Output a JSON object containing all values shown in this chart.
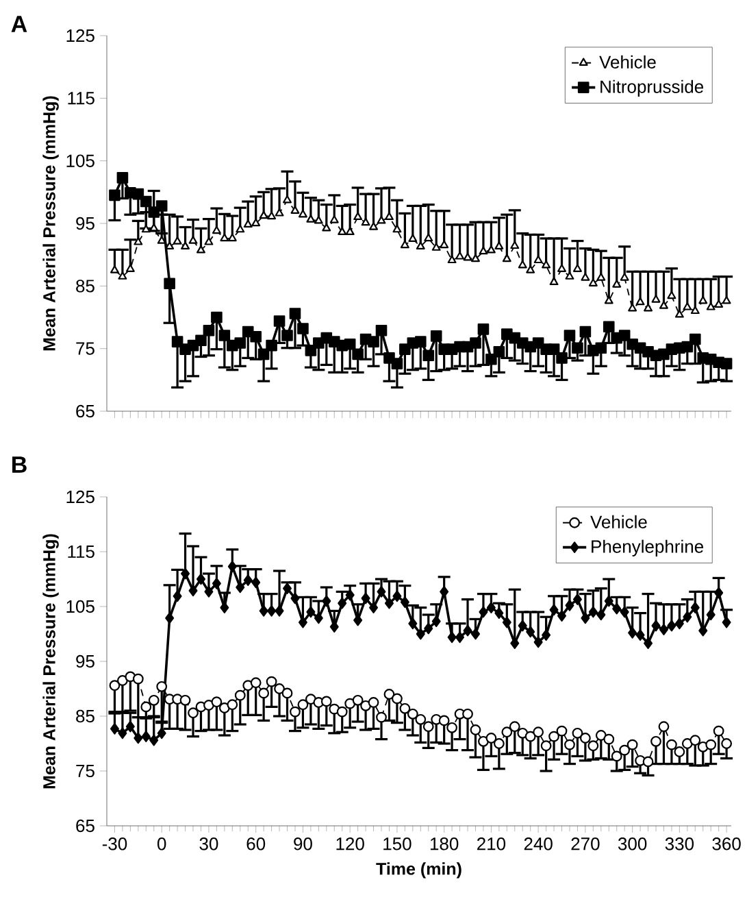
{
  "chart_data": [
    {
      "type": "line",
      "annotations": [
        "A"
      ],
      "ylabel": "Mean Arterial Pressure (mmHg)",
      "xlim": [
        -35,
        363
      ],
      "ylim": [
        65,
        125
      ],
      "xticks": [
        -30,
        -25,
        -20,
        -15,
        -10,
        -5,
        0,
        5,
        10,
        15,
        20,
        25,
        30,
        35,
        40,
        45,
        50,
        55,
        60,
        65,
        70,
        75,
        80,
        85,
        90,
        95,
        100,
        105,
        110,
        115,
        120,
        125,
        130,
        135,
        140,
        145,
        150,
        155,
        160,
        165,
        170,
        175,
        180,
        185,
        190,
        195,
        200,
        205,
        210,
        215,
        220,
        225,
        230,
        235,
        240,
        245,
        250,
        255,
        260,
        265,
        270,
        275,
        280,
        285,
        290,
        295,
        300,
        305,
        310,
        315,
        320,
        325,
        330,
        335,
        340,
        345,
        350,
        355,
        360
      ],
      "yticks": [
        65,
        75,
        85,
        95,
        105,
        115,
        125
      ],
      "tick_labels": "y",
      "legend": "top right",
      "x": [
        -30,
        -25,
        -20,
        -15,
        -10,
        -5,
        0,
        5,
        10,
        15,
        20,
        25,
        30,
        35,
        40,
        45,
        50,
        55,
        60,
        65,
        70,
        75,
        80,
        85,
        90,
        95,
        100,
        105,
        110,
        115,
        120,
        125,
        130,
        135,
        140,
        145,
        150,
        155,
        160,
        165,
        170,
        175,
        180,
        185,
        190,
        195,
        200,
        205,
        210,
        215,
        220,
        225,
        230,
        235,
        240,
        245,
        250,
        255,
        260,
        265,
        270,
        275,
        280,
        285,
        290,
        295,
        300,
        305,
        310,
        315,
        320,
        325,
        330,
        335,
        340,
        345,
        350,
        355,
        360
      ],
      "series": [
        {
          "name": "Vehicle",
          "color": "#000000",
          "marker": "triangle",
          "line_style": "dashed",
          "values": [
            87.5,
            86.5,
            87.7,
            92.0,
            94.0,
            94.2,
            92.2,
            91.3,
            92.1,
            91.3,
            92.2,
            90.7,
            92.0,
            93.8,
            92.6,
            92.6,
            94.0,
            94.8,
            95.0,
            96.2,
            96.1,
            96.6,
            98.7,
            97.0,
            96.4,
            95.6,
            95.4,
            94.2,
            95.5,
            93.6,
            93.6,
            96.0,
            95.1,
            94.4,
            95.4,
            96.0,
            94.0,
            91.5,
            92.5,
            91.3,
            92.6,
            91.1,
            91.5,
            89.1,
            89.7,
            89.5,
            89.3,
            90.5,
            90.7,
            91.3,
            89.3,
            91.4,
            88.3,
            87.5,
            89.1,
            88.3,
            85.6,
            87.7,
            86.5,
            87.7,
            86.3,
            85.4,
            86.3,
            82.6,
            85.2,
            86.3,
            81.4,
            82.4,
            81.4,
            82.8,
            81.8,
            83.4,
            80.4,
            81.6,
            81.0,
            82.6,
            81.6,
            82.0,
            82.6
          ],
          "errors": [
            [
              87.5,
              90.8
            ],
            [
              86.5,
              90.8
            ],
            [
              87.7,
              92.4
            ],
            [
              92.0,
              95.4
            ],
            [
              94.0,
              96.8
            ],
            [
              94.2,
              100.2
            ],
            [
              92.2,
              96.4
            ],
            [
              91.3,
              96.4
            ],
            [
              92.1,
              96.1
            ],
            [
              91.3,
              94.4
            ],
            [
              92.2,
              95.6
            ],
            [
              90.7,
              94.2
            ],
            [
              92.0,
              95.7
            ],
            [
              93.8,
              97.4
            ],
            [
              92.6,
              96.5
            ],
            [
              92.6,
              96.2
            ],
            [
              94.0,
              97.5
            ],
            [
              94.8,
              98.5
            ],
            [
              95.0,
              99.3
            ],
            [
              96.2,
              100.0
            ],
            [
              96.1,
              100.5
            ],
            [
              96.6,
              100.6
            ],
            [
              98.7,
              103.3
            ],
            [
              97.0,
              101.7
            ],
            [
              96.4,
              99.9
            ],
            [
              95.6,
              99.1
            ],
            [
              95.4,
              98.7
            ],
            [
              94.2,
              98.0
            ],
            [
              95.5,
              99.5
            ],
            [
              93.6,
              97.8
            ],
            [
              93.6,
              98.0
            ],
            [
              96.0,
              100.7
            ],
            [
              95.1,
              99.7
            ],
            [
              94.4,
              99.7
            ],
            [
              95.4,
              100.6
            ],
            [
              96.0,
              100.7
            ],
            [
              94.0,
              98.7
            ],
            [
              91.5,
              96.6
            ],
            [
              92.5,
              97.8
            ],
            [
              91.3,
              97.8
            ],
            [
              92.6,
              98.0
            ],
            [
              91.1,
              97.0
            ],
            [
              91.5,
              97.0
            ],
            [
              89.1,
              94.8
            ],
            [
              89.7,
              94.8
            ],
            [
              89.5,
              94.8
            ],
            [
              89.3,
              95.2
            ],
            [
              90.5,
              95.2
            ],
            [
              90.7,
              95.2
            ],
            [
              91.3,
              95.9
            ],
            [
              89.3,
              96.4
            ],
            [
              91.4,
              97.1
            ],
            [
              88.3,
              93.4
            ],
            [
              87.5,
              93.2
            ],
            [
              89.1,
              93.2
            ],
            [
              88.3,
              92.6
            ],
            [
              85.6,
              92.6
            ],
            [
              87.7,
              92.6
            ],
            [
              86.5,
              91.0
            ],
            [
              87.7,
              92.2
            ],
            [
              86.3,
              91.0
            ],
            [
              85.4,
              90.8
            ],
            [
              86.3,
              90.6
            ],
            [
              82.6,
              89.5
            ],
            [
              85.2,
              89.5
            ],
            [
              86.3,
              91.3
            ],
            [
              81.4,
              87.3
            ],
            [
              82.4,
              87.3
            ],
            [
              81.4,
              87.3
            ],
            [
              82.8,
              87.3
            ],
            [
              81.8,
              87.3
            ],
            [
              83.4,
              87.8
            ],
            [
              80.4,
              86.1
            ],
            [
              81.6,
              86.1
            ],
            [
              81.0,
              86.1
            ],
            [
              82.6,
              86.1
            ],
            [
              81.6,
              86.1
            ],
            [
              82.0,
              86.5
            ],
            [
              82.6,
              86.5
            ]
          ]
        },
        {
          "name": "Nitroprusside",
          "color": "#000000",
          "marker": "square",
          "line_style": "solid",
          "values": [
            99.5,
            102.3,
            99.9,
            99.7,
            98.5,
            96.8,
            97.8,
            85.4,
            76.1,
            74.9,
            75.5,
            76.3,
            77.9,
            80.0,
            77.1,
            75.5,
            75.9,
            77.7,
            76.9,
            74.1,
            75.5,
            79.4,
            77.1,
            80.6,
            78.2,
            74.7,
            75.9,
            76.7,
            76.1,
            75.5,
            75.7,
            74.1,
            76.5,
            76.1,
            77.9,
            73.5,
            72.6,
            74.9,
            75.9,
            76.1,
            73.9,
            77.0,
            74.9,
            74.9,
            75.3,
            75.3,
            75.9,
            78.1,
            73.3,
            74.5,
            77.3,
            76.7,
            75.9,
            75.3,
            75.9,
            74.9,
            74.9,
            73.5,
            77.1,
            75.1,
            77.7,
            74.7,
            75.1,
            78.5,
            76.7,
            77.1,
            75.7,
            75.1,
            74.5,
            73.9,
            74.1,
            74.9,
            75.1,
            75.3,
            76.5,
            73.5,
            73.3,
            72.8,
            72.6
          ],
          "errors": [
            [
              95.5,
              99.5
            ],
            [
              99.0,
              102.3
            ],
            [
              96.4,
              99.9
            ],
            [
              96.6,
              99.7
            ],
            [
              94.2,
              98.5
            ],
            [
              93.8,
              96.8
            ],
            [
              93.4,
              97.8
            ],
            [
              79.1,
              85.4
            ],
            [
              68.8,
              76.1
            ],
            [
              69.8,
              74.9
            ],
            [
              70.6,
              75.5
            ],
            [
              73.7,
              76.3
            ],
            [
              73.9,
              77.9
            ],
            [
              74.9,
              80.0
            ],
            [
              72.0,
              77.1
            ],
            [
              71.6,
              75.5
            ],
            [
              72.2,
              75.9
            ],
            [
              73.5,
              77.7
            ],
            [
              73.3,
              76.9
            ],
            [
              69.8,
              74.1
            ],
            [
              71.8,
              75.5
            ],
            [
              75.9,
              79.4
            ],
            [
              75.1,
              77.1
            ],
            [
              75.1,
              80.6
            ],
            [
              75.5,
              78.2
            ],
            [
              72.0,
              74.7
            ],
            [
              71.6,
              75.9
            ],
            [
              72.4,
              76.7
            ],
            [
              71.2,
              76.1
            ],
            [
              71.2,
              75.5
            ],
            [
              71.8,
              75.7
            ],
            [
              71.2,
              74.1
            ],
            [
              73.3,
              76.5
            ],
            [
              72.2,
              76.1
            ],
            [
              74.1,
              77.9
            ],
            [
              69.8,
              73.5
            ],
            [
              68.8,
              72.6
            ],
            [
              71.0,
              74.9
            ],
            [
              71.6,
              75.9
            ],
            [
              71.8,
              76.1
            ],
            [
              70.0,
              73.9
            ],
            [
              71.4,
              77.0
            ],
            [
              71.6,
              74.9
            ],
            [
              71.8,
              74.9
            ],
            [
              72.2,
              75.3
            ],
            [
              71.4,
              75.3
            ],
            [
              72.2,
              75.9
            ],
            [
              72.4,
              78.1
            ],
            [
              70.6,
              73.3
            ],
            [
              71.2,
              74.5
            ],
            [
              73.5,
              77.3
            ],
            [
              73.1,
              76.7
            ],
            [
              72.6,
              75.9
            ],
            [
              71.4,
              75.3
            ],
            [
              72.2,
              75.9
            ],
            [
              71.2,
              74.9
            ],
            [
              70.6,
              74.9
            ],
            [
              70.0,
              73.5
            ],
            [
              73.5,
              77.1
            ],
            [
              73.1,
              75.1
            ],
            [
              73.9,
              77.7
            ],
            [
              71.0,
              74.7
            ],
            [
              72.2,
              75.1
            ],
            [
              75.9,
              78.5
            ],
            [
              74.3,
              76.7
            ],
            [
              73.9,
              77.1
            ],
            [
              72.2,
              75.7
            ],
            [
              71.8,
              75.1
            ],
            [
              71.8,
              74.5
            ],
            [
              70.6,
              73.9
            ],
            [
              70.6,
              74.1
            ],
            [
              72.2,
              74.9
            ],
            [
              71.6,
              75.1
            ],
            [
              72.6,
              75.3
            ],
            [
              72.6,
              76.5
            ],
            [
              69.6,
              73.5
            ],
            [
              69.8,
              73.3
            ],
            [
              70.0,
              72.8
            ],
            [
              69.8,
              72.6
            ]
          ]
        }
      ]
    },
    {
      "type": "line",
      "annotations": [
        "B"
      ],
      "xlabel": "Time (min)",
      "ylabel": "Mean Arterial Pressure (mmHg)",
      "xlim": [
        -35,
        363
      ],
      "ylim": [
        65,
        125
      ],
      "xticks": [
        -30,
        0,
        30,
        60,
        90,
        120,
        150,
        180,
        210,
        240,
        270,
        300,
        330,
        360
      ],
      "yticks": [
        65,
        75,
        85,
        95,
        105,
        115,
        125
      ],
      "legend": "top right",
      "x": [
        -30,
        -25,
        -20,
        -15,
        -10,
        -5,
        0,
        5,
        10,
        15,
        20,
        25,
        30,
        35,
        40,
        45,
        50,
        55,
        60,
        65,
        70,
        75,
        80,
        85,
        90,
        95,
        100,
        105,
        110,
        115,
        120,
        125,
        130,
        135,
        140,
        145,
        150,
        155,
        160,
        165,
        170,
        175,
        180,
        185,
        190,
        195,
        200,
        205,
        210,
        215,
        220,
        225,
        230,
        235,
        240,
        245,
        250,
        255,
        260,
        265,
        270,
        275,
        280,
        285,
        290,
        295,
        300,
        305,
        310,
        315,
        320,
        325,
        330,
        335,
        340,
        345,
        350,
        355,
        360
      ],
      "series": [
        {
          "name": "Vehicle",
          "color": "#000000",
          "marker": "circle",
          "line_style": "dashed",
          "values": [
            90.6,
            91.5,
            92.2,
            91.8,
            86.7,
            87.9,
            90.4,
            88.1,
            88.1,
            87.9,
            85.6,
            86.7,
            87.0,
            87.6,
            86.5,
            87.1,
            88.8,
            90.6,
            91.1,
            89.2,
            91.3,
            90.0,
            89.2,
            85.8,
            87.1,
            88.1,
            87.5,
            87.7,
            86.3,
            85.8,
            87.3,
            87.9,
            86.9,
            87.5,
            84.8,
            89.0,
            88.2,
            86.4,
            85.4,
            84.4,
            83.1,
            84.4,
            84.2,
            82.9,
            85.4,
            85.4,
            82.5,
            80.4,
            81.0,
            80.0,
            82.1,
            83.1,
            81.9,
            81.3,
            82.1,
            79.6,
            81.3,
            82.3,
            79.8,
            81.9,
            81.0,
            79.6,
            81.5,
            80.8,
            77.7,
            78.8,
            79.8,
            76.9,
            76.7,
            80.4,
            83.1,
            79.8,
            78.5,
            80.0,
            80.6,
            79.4,
            79.8,
            82.3,
            80.0
          ],
          "errors": [
            [
              85.8,
              90.6
            ],
            [
              85.6,
              91.5
            ],
            [
              86.0,
              92.2
            ],
            [
              84.8,
              91.8
            ],
            [
              84.6,
              86.7
            ],
            [
              84.8,
              87.9
            ],
            [
              83.8,
              90.4
            ],
            [
              82.7,
              88.1
            ],
            [
              82.7,
              88.1
            ],
            [
              82.5,
              87.9
            ],
            [
              81.3,
              85.6
            ],
            [
              82.3,
              86.7
            ],
            [
              82.5,
              87.0
            ],
            [
              82.5,
              87.6
            ],
            [
              81.5,
              86.5
            ],
            [
              82.3,
              87.1
            ],
            [
              83.5,
              88.8
            ],
            [
              85.2,
              90.6
            ],
            [
              85.2,
              91.1
            ],
            [
              84.2,
              89.2
            ],
            [
              86.7,
              91.3
            ],
            [
              85.0,
              90.0
            ],
            [
              84.2,
              89.2
            ],
            [
              82.3,
              85.8
            ],
            [
              82.9,
              87.1
            ],
            [
              83.5,
              88.1
            ],
            [
              82.7,
              87.5
            ],
            [
              83.3,
              87.7
            ],
            [
              81.9,
              86.3
            ],
            [
              82.1,
              85.8
            ],
            [
              82.9,
              87.3
            ],
            [
              84.0,
              87.9
            ],
            [
              82.5,
              86.9
            ],
            [
              82.7,
              87.5
            ],
            [
              80.8,
              84.8
            ],
            [
              84.2,
              89.0
            ],
            [
              83.8,
              88.2
            ],
            [
              82.5,
              86.4
            ],
            [
              81.5,
              85.4
            ],
            [
              80.2,
              84.4
            ],
            [
              79.2,
              83.1
            ],
            [
              80.2,
              84.4
            ],
            [
              80.0,
              84.2
            ],
            [
              78.8,
              82.9
            ],
            [
              80.8,
              85.4
            ],
            [
              78.8,
              85.4
            ],
            [
              77.5,
              82.5
            ],
            [
              75.2,
              80.4
            ],
            [
              77.7,
              81.0
            ],
            [
              75.4,
              80.0
            ],
            [
              78.1,
              82.1
            ],
            [
              78.3,
              83.1
            ],
            [
              77.9,
              81.9
            ],
            [
              77.3,
              81.3
            ],
            [
              77.9,
              82.1
            ],
            [
              75.0,
              79.6
            ],
            [
              77.1,
              81.3
            ],
            [
              78.1,
              82.3
            ],
            [
              76.3,
              79.8
            ],
            [
              77.7,
              81.9
            ],
            [
              76.9,
              81.0
            ],
            [
              77.1,
              79.6
            ],
            [
              77.3,
              81.5
            ],
            [
              77.1,
              80.8
            ],
            [
              75.0,
              77.7
            ],
            [
              75.2,
              78.8
            ],
            [
              75.8,
              79.8
            ],
            [
              74.6,
              76.9
            ],
            [
              74.2,
              76.7
            ],
            [
              76.3,
              80.4
            ],
            [
              76.3,
              83.1
            ],
            [
              76.3,
              79.8
            ],
            [
              76.3,
              78.5
            ],
            [
              76.3,
              80.0
            ],
            [
              76.0,
              80.6
            ],
            [
              76.0,
              79.4
            ],
            [
              76.3,
              79.8
            ],
            [
              78.1,
              82.3
            ],
            [
              77.3,
              80.0
            ]
          ]
        },
        {
          "name": "Phenylephrine",
          "color": "#000000",
          "marker": "diamond",
          "line_style": "solid",
          "values": [
            82.7,
            81.9,
            83.1,
            81.0,
            81.3,
            80.6,
            81.9,
            102.9,
            106.9,
            111.0,
            107.9,
            110.0,
            107.7,
            109.2,
            104.8,
            112.3,
            108.5,
            109.8,
            109.4,
            104.2,
            104.2,
            104.2,
            108.3,
            106.5,
            102.1,
            104.0,
            102.9,
            106.0,
            101.3,
            105.6,
            107.1,
            102.5,
            106.5,
            104.8,
            107.7,
            105.6,
            106.9,
            105.8,
            101.9,
            100.0,
            101.0,
            102.3,
            107.7,
            99.4,
            99.4,
            100.6,
            100.0,
            104.0,
            104.8,
            103.8,
            102.1,
            98.3,
            101.5,
            100.4,
            98.5,
            99.8,
            104.4,
            103.3,
            105.2,
            106.3,
            102.9,
            104.0,
            103.5,
            106.0,
            104.6,
            104.0,
            100.2,
            99.8,
            98.3,
            101.5,
            100.8,
            101.5,
            101.9,
            103.1,
            104.8,
            100.6,
            103.5,
            107.5,
            102.1
          ],
          "errors": [
            [
              82.7,
              85.5
            ],
            [
              81.9,
              85.8
            ],
            [
              83.1,
              85.6
            ],
            [
              81.0,
              84.8
            ],
            [
              81.3,
              84.8
            ],
            [
              80.6,
              85.0
            ],
            [
              81.9,
              84.0
            ],
            [
              102.9,
              108.9
            ],
            [
              106.9,
              111.7
            ],
            [
              111.0,
              118.3
            ],
            [
              107.9,
              116.0
            ],
            [
              110.0,
              114.0
            ],
            [
              107.7,
              111.0
            ],
            [
              109.2,
              112.4
            ],
            [
              104.8,
              107.5
            ],
            [
              112.3,
              115.4
            ],
            [
              108.5,
              112.4
            ],
            [
              109.8,
              111.8
            ],
            [
              109.4,
              111.8
            ],
            [
              104.2,
              107.3
            ],
            [
              104.2,
              107.3
            ],
            [
              104.2,
              111.5
            ],
            [
              108.3,
              109.4
            ],
            [
              106.5,
              109.4
            ],
            [
              102.1,
              106.7
            ],
            [
              104.0,
              106.7
            ],
            [
              102.9,
              106.0
            ],
            [
              106.0,
              108.5
            ],
            [
              101.3,
              104.2
            ],
            [
              105.6,
              107.7
            ],
            [
              107.1,
              108.8
            ],
            [
              102.5,
              105.4
            ],
            [
              106.5,
              109.2
            ],
            [
              104.8,
              109.2
            ],
            [
              107.7,
              110.0
            ],
            [
              105.6,
              109.6
            ],
            [
              106.9,
              109.6
            ],
            [
              105.8,
              108.8
            ],
            [
              101.9,
              105.2
            ],
            [
              100.0,
              104.8
            ],
            [
              101.0,
              103.5
            ],
            [
              102.3,
              105.4
            ],
            [
              107.7,
              110.4
            ],
            [
              99.4,
              101.9
            ],
            [
              99.4,
              101.9
            ],
            [
              100.6,
              106.3
            ],
            [
              100.0,
              102.7
            ],
            [
              104.0,
              107.3
            ],
            [
              104.8,
              107.3
            ],
            [
              103.8,
              105.6
            ],
            [
              102.1,
              105.4
            ],
            [
              98.3,
              108.1
            ],
            [
              101.5,
              104.0
            ],
            [
              100.4,
              104.0
            ],
            [
              98.5,
              104.0
            ],
            [
              99.8,
              103.1
            ],
            [
              104.4,
              106.9
            ],
            [
              103.3,
              106.9
            ],
            [
              105.2,
              108.1
            ],
            [
              106.3,
              108.1
            ],
            [
              102.9,
              107.3
            ],
            [
              104.0,
              107.9
            ],
            [
              103.5,
              108.3
            ],
            [
              106.0,
              110.0
            ],
            [
              104.6,
              106.7
            ],
            [
              104.0,
              106.7
            ],
            [
              100.2,
              104.8
            ],
            [
              99.8,
              103.8
            ],
            [
              98.3,
              107.3
            ],
            [
              101.5,
              105.6
            ],
            [
              100.8,
              105.4
            ],
            [
              101.5,
              105.4
            ],
            [
              101.9,
              105.4
            ],
            [
              103.1,
              106.3
            ],
            [
              104.8,
              107.7
            ],
            [
              100.6,
              107.7
            ],
            [
              103.5,
              107.7
            ],
            [
              107.5,
              110.2
            ],
            [
              102.1,
              104.4
            ]
          ]
        }
      ]
    }
  ]
}
